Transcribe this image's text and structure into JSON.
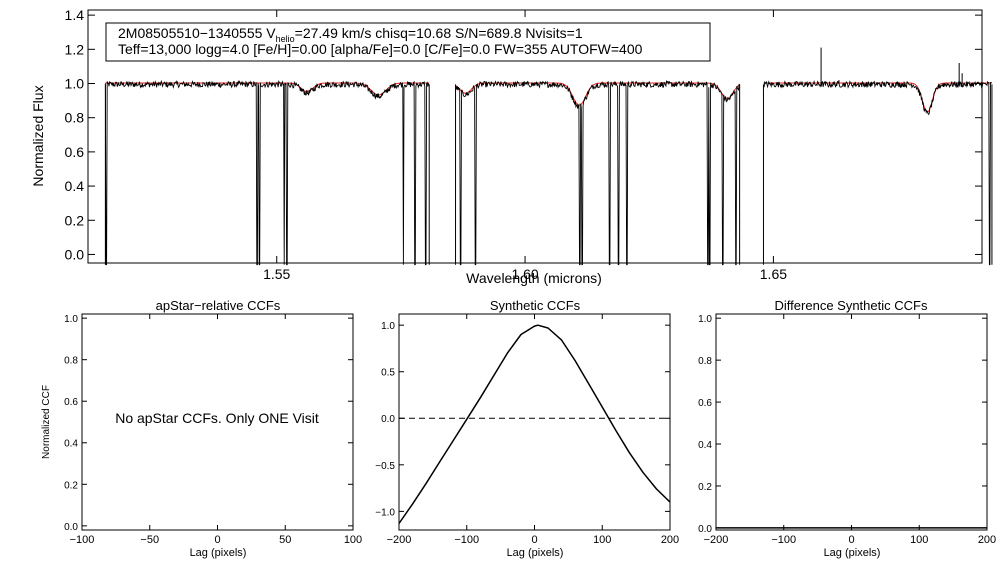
{
  "chart_data": [
    {
      "type": "line",
      "panel": "spectrum",
      "xlabel": "Wavelength (microns)",
      "ylabel": "Normalized Flux",
      "xlim": [
        1.512,
        1.692
      ],
      "ylim": [
        -0.05,
        1.43
      ],
      "xticks": [
        1.55,
        1.6,
        1.65
      ],
      "xtick_labels": [
        "1.55",
        "1.60",
        "1.65"
      ],
      "yticks": [
        0.0,
        0.2,
        0.4,
        0.6,
        0.8,
        1.0,
        1.2,
        1.4
      ],
      "ytick_labels": [
        "0.0",
        "0.2",
        "0.4",
        "0.6",
        "0.8",
        "1.0",
        "1.2",
        "1.4"
      ],
      "info_box": {
        "line1_prefix": "2M08505510−1340555  V",
        "line1_subscript": "helio",
        "line1_rest": "=27.49 km/s  chisq=10.68  S/N=689.8  Nvisits=1",
        "line2": "Teff=13,000 logg=4.0 [Fe/H]=0.00 [alpha/Fe]=0.0 [C/Fe]=0.0 FW=355 AUTOFW=400"
      },
      "series": [
        {
          "name": "observed",
          "color": "#000000",
          "chips": [
            [
              1.5155,
              1.5807
            ],
            [
              1.586,
              1.6432
            ],
            [
              1.648,
              1.694
            ]
          ],
          "continuum": 0.995,
          "absorption_lines": [
            {
              "center": 1.5561,
              "depth": 0.05,
              "width": 0.0012
            },
            {
              "center": 1.5705,
              "depth": 0.07,
              "width": 0.0015
            },
            {
              "center": 1.588,
              "depth": 0.06,
              "width": 0.0012
            },
            {
              "center": 1.6109,
              "depth": 0.13,
              "width": 0.0013
            },
            {
              "center": 1.6407,
              "depth": 0.09,
              "width": 0.0012
            },
            {
              "center": 1.681,
              "depth": 0.17,
              "width": 0.001
            }
          ],
          "bad_pixels": [
            1.5157,
            1.546,
            1.5465,
            1.5515,
            1.552,
            1.5755,
            1.5778,
            1.58,
            1.587,
            1.59,
            1.611,
            1.6115,
            1.617,
            1.6188,
            1.6205,
            1.6368,
            1.6372,
            1.6398,
            1.6425,
            1.6935
          ],
          "spikes": [
            {
              "x": 1.6596,
              "y": 1.21
            },
            {
              "x": 1.6632,
              "y": 1.02
            },
            {
              "x": 1.6874,
              "y": 1.12
            },
            {
              "x": 1.688,
              "y": 1.06
            }
          ]
        },
        {
          "name": "synthetic model",
          "color": "#e8211b",
          "chips": [
            [
              1.5155,
              1.5807
            ],
            [
              1.586,
              1.6432
            ],
            [
              1.648,
              1.694
            ]
          ]
        }
      ]
    },
    {
      "type": "line",
      "panel": "apstar-ccf",
      "title": "apStar−relative CCFs",
      "xlabel": "Lag (pixels)",
      "ylabel": "Normalized CCF",
      "xlim": [
        -100,
        100
      ],
      "ylim": [
        -0.02,
        1.02
      ],
      "xticks": [
        -100,
        -50,
        0,
        50,
        100
      ],
      "xtick_labels": [
        "−100",
        "−50",
        "0",
        "50",
        "100"
      ],
      "yticks": [
        0.0,
        0.2,
        0.4,
        0.6,
        0.8,
        1.0
      ],
      "ytick_labels": [
        "0.0",
        "0.2",
        "0.4",
        "0.6",
        "0.8",
        "1.0"
      ],
      "annotation": "No apStar CCFs.  Only ONE Visit",
      "series": []
    },
    {
      "type": "line",
      "panel": "synthetic-ccf",
      "title": "Synthetic CCFs",
      "xlabel": "Lag (pixels)",
      "ylabel": "",
      "xlim": [
        -200,
        200
      ],
      "ylim": [
        -1.2,
        1.12
      ],
      "xticks": [
        -200,
        -100,
        0,
        100,
        200
      ],
      "xtick_labels": [
        "−200",
        "−100",
        "0",
        "100",
        "200"
      ],
      "yticks": [
        -1.0,
        -0.5,
        0.0,
        0.5,
        1.0
      ],
      "ytick_labels": [
        "−1.0",
        "−0.5",
        "0.0",
        "0.5",
        "1.0"
      ],
      "series": [
        {
          "name": "synthetic ccf",
          "color": "#000000",
          "x": [
            -200,
            -180,
            -160,
            -140,
            -120,
            -100,
            -80,
            -60,
            -40,
            -20,
            0,
            5,
            20,
            40,
            60,
            80,
            100,
            120,
            140,
            160,
            180,
            200
          ],
          "y": [
            -1.13,
            -0.92,
            -0.7,
            -0.47,
            -0.24,
            -0.01,
            0.22,
            0.46,
            0.7,
            0.9,
            0.99,
            1.0,
            0.97,
            0.84,
            0.62,
            0.37,
            0.12,
            -0.13,
            -0.37,
            -0.58,
            -0.76,
            -0.9
          ]
        },
        {
          "name": "zero line",
          "color": "#000000",
          "style": "dashed",
          "x": [
            -200,
            200
          ],
          "y": [
            0,
            0
          ]
        }
      ]
    },
    {
      "type": "line",
      "panel": "difference-ccf",
      "title": "Difference Synthetic CCFs",
      "xlabel": "Lag (pixels)",
      "ylabel": "",
      "xlim": [
        -200,
        200
      ],
      "ylim": [
        -0.01,
        1.02
      ],
      "xticks": [
        -200,
        -100,
        0,
        100,
        200
      ],
      "xtick_labels": [
        "−200",
        "−100",
        "0",
        "100",
        "200"
      ],
      "yticks": [
        0.0,
        0.2,
        0.4,
        0.6,
        0.8,
        1.0
      ],
      "ytick_labels": [
        "0.0",
        "0.2",
        "0.4",
        "0.6",
        "0.8",
        "1.0"
      ],
      "series": [
        {
          "name": "difference ccf",
          "color": "#000000",
          "x": [
            -200,
            200
          ],
          "y": [
            0,
            0
          ]
        }
      ]
    }
  ]
}
